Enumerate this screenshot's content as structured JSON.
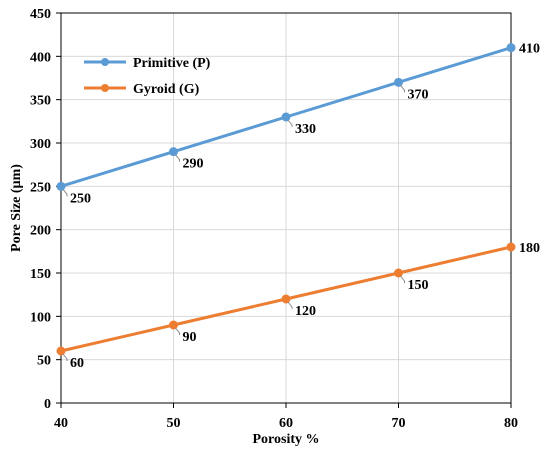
{
  "chart_data": {
    "type": "line",
    "title": "",
    "xlabel": "Porosity %",
    "ylabel": "Pore Size (µm)",
    "x": [
      40,
      50,
      60,
      70,
      80
    ],
    "xlim": [
      40,
      80
    ],
    "ylim": [
      0,
      450
    ],
    "x_ticks": [
      "40",
      "50",
      "60",
      "70",
      "80"
    ],
    "y_ticks": [
      "0",
      "50",
      "100",
      "150",
      "200",
      "250",
      "300",
      "350",
      "400",
      "450"
    ],
    "grid": true,
    "legend_position": "top-left",
    "series": [
      {
        "name": "Primitive (P)",
        "color": "#5b9bd5",
        "values": [
          250,
          290,
          330,
          370,
          410
        ],
        "labels": [
          "250",
          "290",
          "330",
          "370",
          "410"
        ]
      },
      {
        "name": "Gyroid (G)",
        "color": "#ed7d31",
        "values": [
          60,
          90,
          120,
          150,
          180
        ],
        "labels": [
          "60",
          "90",
          "120",
          "150",
          "180"
        ]
      }
    ]
  }
}
